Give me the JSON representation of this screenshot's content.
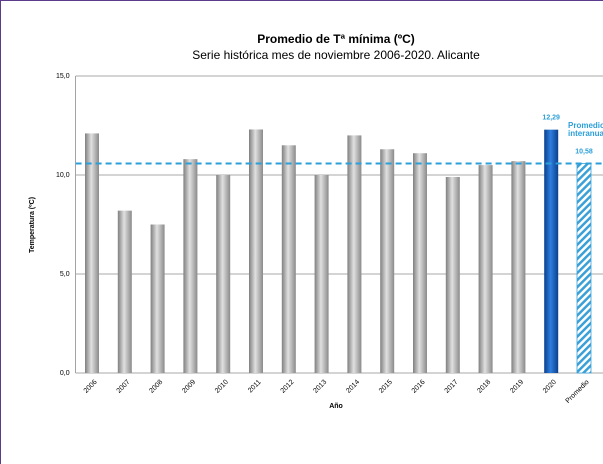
{
  "chart_data": {
    "type": "bar",
    "title": "Promedio de Tª mínima (ºC)",
    "subtitle": "Serie histórica mes de noviembre 2006-2020. Alicante",
    "y_label": "Temperatura (ºC)",
    "x_label": "Año",
    "categories": [
      "2006",
      "2007",
      "2008",
      "2009",
      "2010",
      "2011",
      "2012",
      "2013",
      "2014",
      "2015",
      "2016",
      "2017",
      "2018",
      "2019",
      "2020",
      "Promedio"
    ],
    "values": [
      12.1,
      8.2,
      7.5,
      10.8,
      10.0,
      12.3,
      11.5,
      10.0,
      12.0,
      11.3,
      11.1,
      9.9,
      10.5,
      10.7,
      12.29,
      10.58
    ],
    "value_labels": [
      null,
      null,
      null,
      null,
      null,
      null,
      null,
      null,
      null,
      null,
      null,
      null,
      null,
      null,
      "12,29",
      "10,58"
    ],
    "bar_colors": [
      "#a6a6a6",
      "#a6a6a6",
      "#a6a6a6",
      "#a6a6a6",
      "#a6a6a6",
      "#a6a6a6",
      "#a6a6a6",
      "#a6a6a6",
      "#a6a6a6",
      "#a6a6a6",
      "#a6a6a6",
      "#a6a6a6",
      "#a6a6a6",
      "#a6a6a6",
      "#1560bd",
      "#3aa0d8"
    ],
    "hatched_categories": [
      "Promedio"
    ],
    "average_annotation": [
      "Promedio",
      "interanual"
    ],
    "average_color": "#2b9fd9",
    "ylim": [
      0,
      15
    ],
    "yticks": [
      {
        "value": 0,
        "label": "0,0"
      },
      {
        "value": 5,
        "label": "5,0"
      },
      {
        "value": 10,
        "label": "10,0"
      },
      {
        "value": 15,
        "label": "15,0"
      }
    ],
    "grid": true
  }
}
